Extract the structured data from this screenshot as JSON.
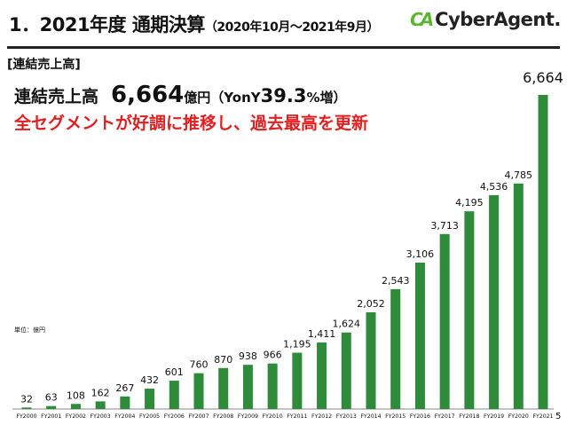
{
  "header": {
    "title": "1．2021年度 通期決算",
    "period": "（2020年10月～2021年9月）",
    "logo_mark": "CA",
    "logo_text": "CyberAgent."
  },
  "section_label": "[連結売上高]",
  "headline": {
    "label": "連結売上高",
    "value": "6,664",
    "unit": "億円",
    "yoy_prefix": "（YonY",
    "yoy_value": "39.3",
    "yoy_suffix": "%増）",
    "message": "全セグメントが好調に推移し、過去最高を更新"
  },
  "unit_note": "単位：億円",
  "page_number": "5",
  "colors": {
    "bar": "#2e8b3a",
    "accent_text": "#e02020",
    "logo": "#5bb531"
  },
  "chart_data": {
    "type": "bar",
    "categories": [
      "FY2000",
      "FY2001",
      "FY2002",
      "FY2003",
      "FY2004",
      "FY2005",
      "FY2006",
      "FY2007",
      "FY2008",
      "FY2009",
      "FY2010",
      "FY2011",
      "FY2012",
      "FY2013",
      "FY2014",
      "FY2015",
      "FY2016",
      "FY2017",
      "FY2018",
      "FY2019",
      "FY2020",
      "FY2021"
    ],
    "values": [
      32,
      63,
      108,
      162,
      267,
      432,
      601,
      760,
      870,
      938,
      966,
      1195,
      1411,
      1624,
      2052,
      2543,
      3106,
      3713,
      4195,
      4536,
      4785,
      6664
    ],
    "labels": [
      "32",
      "63",
      "108",
      "162",
      "267",
      "432",
      "601",
      "760",
      "870",
      "938",
      "966",
      "1,195",
      "1,411",
      "1,624",
      "2,052",
      "2,543",
      "3,106",
      "3,713",
      "4,195",
      "4,536",
      "4,785",
      "6,664"
    ],
    "ylim": [
      0,
      6664
    ],
    "grid": false,
    "legend": "none"
  }
}
